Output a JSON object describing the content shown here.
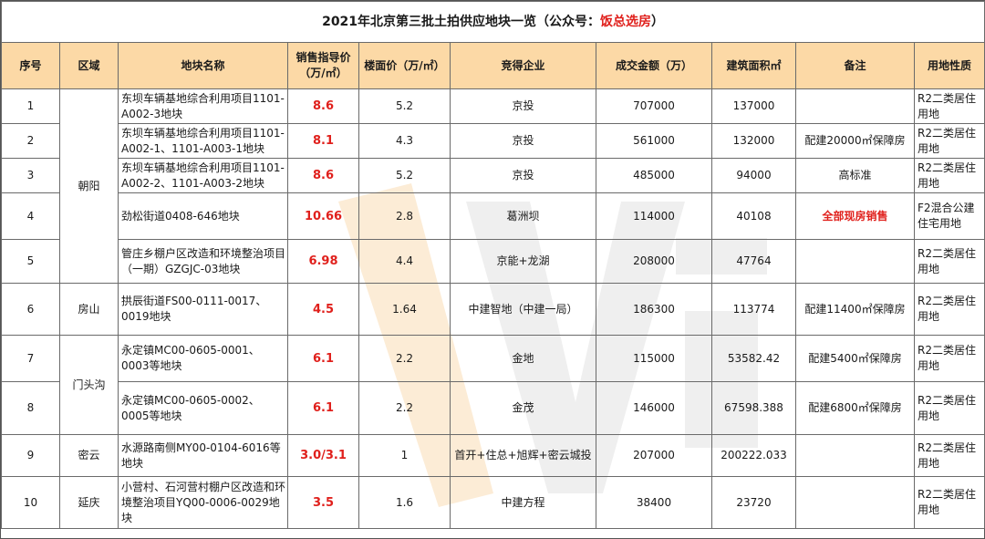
{
  "title_main": "2021年北京第三批土拍供应地块一览（公众号：",
  "title_brand": "饭总选房",
  "title_end": "）",
  "headers": {
    "no": "序号",
    "district": "区域",
    "name": "地块名称",
    "price": "销售指导价（万/㎡）",
    "floor_price": "楼面价（万/㎡）",
    "winner": "竞得企业",
    "deal": "成交金额（万）",
    "area": "建筑面积㎡",
    "note": "备注",
    "use": "用地性质"
  },
  "districts": {
    "chaoyang": "朝阳",
    "fangshan": "房山",
    "mentougou": "门头沟",
    "miyun": "密云",
    "yanqing": "延庆"
  },
  "rows": [
    {
      "no": "1",
      "name": "东坝车辆基地综合利用项目1101-A002-3地块",
      "price": "8.6",
      "floor_price": "5.2",
      "winner": "京投",
      "deal": "707000",
      "area": "137000",
      "note": "",
      "use": "R2二类居住用地"
    },
    {
      "no": "2",
      "name": "东坝车辆基地综合利用项目1101-A002-1、1101-A003-1地块",
      "price": "8.1",
      "floor_price": "4.3",
      "winner": "京投",
      "deal": "561000",
      "area": "132000",
      "note": "配建20000㎡保障房",
      "use": "R2二类居住用地"
    },
    {
      "no": "3",
      "name": "东坝车辆基地综合利用项目1101-A002-2、1101-A003-2地块",
      "price": "8.6",
      "floor_price": "5.2",
      "winner": "京投",
      "deal": "485000",
      "area": "94000",
      "note": "高标准",
      "use": "R2二类居住用地"
    },
    {
      "no": "4",
      "name": "劲松街道0408-646地块",
      "price": "10.66",
      "floor_price": "2.8",
      "winner": "葛洲坝",
      "deal": "114000",
      "area": "40108",
      "note": "全部现房销售",
      "use": "F2混合公建住宅用地"
    },
    {
      "no": "5",
      "name": "管庄乡棚户区改造和环境整治项目（一期）GZGJC-03地块",
      "price": "6.98",
      "floor_price": "4.4",
      "winner": "京能+龙湖",
      "deal": "208000",
      "area": "47764",
      "note": "",
      "use": "R2二类居住用地"
    },
    {
      "no": "6",
      "name": "拱辰街道FS00-0111-0017、0019地块",
      "price": "4.5",
      "floor_price": "1.64",
      "winner": "中建智地（中建一局）",
      "deal": "186300",
      "area": "113774",
      "note": "配建11400㎡保障房",
      "use": "R2二类居住用地"
    },
    {
      "no": "7",
      "name": "永定镇MC00-0605-0001、0003等地块",
      "price": "6.1",
      "floor_price": "2.2",
      "winner": "金地",
      "deal": "115000",
      "area": "53582.42",
      "note": "配建5400㎡保障房",
      "use": "R2二类居住用地"
    },
    {
      "no": "8",
      "name": "永定镇MC00-0605-0002、0005等地块",
      "price": "6.1",
      "floor_price": "2.2",
      "winner": "金茂",
      "deal": "146000",
      "area": "67598.388",
      "note": "配建6800㎡保障房",
      "use": "R2二类居住用地"
    },
    {
      "no": "9",
      "name": "水源路南侧MY00-0104-6016等地块",
      "price": "3.0/3.1",
      "floor_price": "1",
      "winner": "首开+住总+旭辉+密云城投",
      "deal": "207000",
      "area": "200222.033",
      "note": "",
      "use": "R2二类居住用地"
    },
    {
      "no": "10",
      "name": "小营村、石河营村棚户区改造和环境整治项目YQ00-0006-0029地块",
      "price": "3.5",
      "floor_price": "1.6",
      "winner": "中建方程",
      "deal": "38400",
      "area": "23720",
      "note": "",
      "use": "R2二类居住用地"
    }
  ],
  "colors": {
    "header_bg": "#fcd9a6",
    "accent_red": "#e0201c",
    "watermark_orange": "#f6c98a",
    "watermark_gray": "#dcdcdc"
  }
}
